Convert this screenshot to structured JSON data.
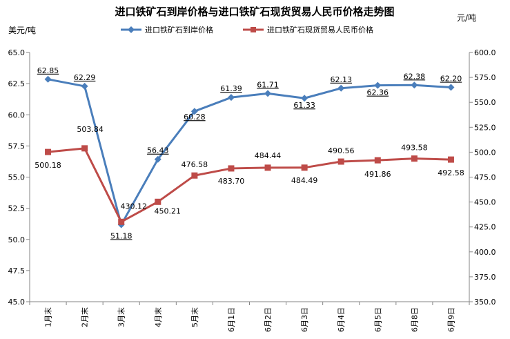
{
  "chart_data": {
    "type": "line",
    "title": "进口铁矿石到岸价格与进口铁矿石现货贸易人民币价格走势图",
    "ylabel_left": "美元/吨",
    "ylabel_right": "元/吨",
    "categories": [
      "1月末",
      "2月末",
      "3月末",
      "4月末",
      "5月末",
      "6月1日",
      "6月2日",
      "6月3日",
      "6月4日",
      "6月5日",
      "6月8日",
      "6月9日"
    ],
    "ylim_left": [
      45.0,
      65.0
    ],
    "ylim_right": [
      350.0,
      600.0
    ],
    "yticks_left": [
      "45.0",
      "47.5",
      "50.0",
      "52.5",
      "55.0",
      "57.5",
      "60.0",
      "62.5",
      "65.0"
    ],
    "yticks_right": [
      "350.0",
      "375.0",
      "400.0",
      "425.0",
      "450.0",
      "475.0",
      "500.0",
      "525.0",
      "550.0",
      "575.0",
      "600.0"
    ],
    "series": [
      {
        "name": "进口铁矿石到岸价格",
        "axis": "left",
        "color": "#4a7ebb",
        "marker": "diamond",
        "values": [
          62.85,
          62.29,
          51.18,
          56.43,
          60.28,
          61.39,
          61.71,
          61.33,
          62.13,
          62.36,
          62.38,
          62.2
        ],
        "labels": [
          "62.85",
          "62.29",
          "51.18",
          "56.43",
          "60.28",
          "61.39",
          "61.71",
          "61.33",
          "62.13",
          "62.36",
          "62.38",
          "62.20"
        ]
      },
      {
        "name": "进口铁矿石现货贸易人民币价格",
        "axis": "right",
        "color": "#be4b48",
        "marker": "square",
        "values": [
          500.18,
          503.84,
          430.12,
          450.21,
          476.58,
          483.7,
          484.44,
          484.49,
          490.56,
          491.86,
          493.58,
          492.58
        ],
        "labels": [
          "500.18",
          "503.84",
          "430.12",
          "450.21",
          "476.58",
          "483.70",
          "484.44",
          "484.49",
          "490.56",
          "491.86",
          "493.58",
          "492.58"
        ]
      }
    ],
    "legend_position": "top",
    "grid": false
  }
}
